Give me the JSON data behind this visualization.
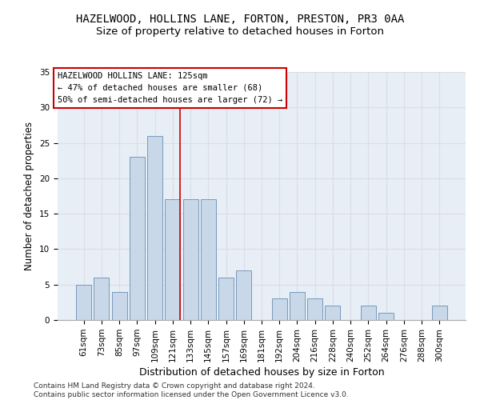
{
  "title": "HAZELWOOD, HOLLINS LANE, FORTON, PRESTON, PR3 0AA",
  "subtitle": "Size of property relative to detached houses in Forton",
  "xlabel": "Distribution of detached houses by size in Forton",
  "ylabel": "Number of detached properties",
  "categories": [
    "61sqm",
    "73sqm",
    "85sqm",
    "97sqm",
    "109sqm",
    "121sqm",
    "133sqm",
    "145sqm",
    "157sqm",
    "169sqm",
    "181sqm",
    "192sqm",
    "204sqm",
    "216sqm",
    "228sqm",
    "240sqm",
    "252sqm",
    "264sqm",
    "276sqm",
    "288sqm",
    "300sqm"
  ],
  "values": [
    5,
    6,
    4,
    23,
    26,
    17,
    17,
    17,
    6,
    7,
    0,
    3,
    4,
    3,
    2,
    0,
    2,
    1,
    0,
    0,
    2
  ],
  "bar_color": "#c8d8e8",
  "bar_edge_color": "#7799bb",
  "grid_color": "#d8dde8",
  "annotation_line1": "HAZELWOOD HOLLINS LANE: 125sqm",
  "annotation_line2": "← 47% of detached houses are smaller (68)",
  "annotation_line3": "50% of semi-detached houses are larger (72) →",
  "annotation_box_color": "#ffffff",
  "annotation_box_edge_color": "#cc0000",
  "vline_color": "#cc0000",
  "vline_x": 5.4,
  "ylim": [
    0,
    35
  ],
  "yticks": [
    0,
    5,
    10,
    15,
    20,
    25,
    30,
    35
  ],
  "footer": "Contains HM Land Registry data © Crown copyright and database right 2024.\nContains public sector information licensed under the Open Government Licence v3.0.",
  "title_fontsize": 10,
  "subtitle_fontsize": 9.5,
  "xlabel_fontsize": 9,
  "ylabel_fontsize": 8.5,
  "tick_fontsize": 7.5,
  "annotation_fontsize": 7.5,
  "footer_fontsize": 6.5,
  "bg_color": "#e8eef5"
}
